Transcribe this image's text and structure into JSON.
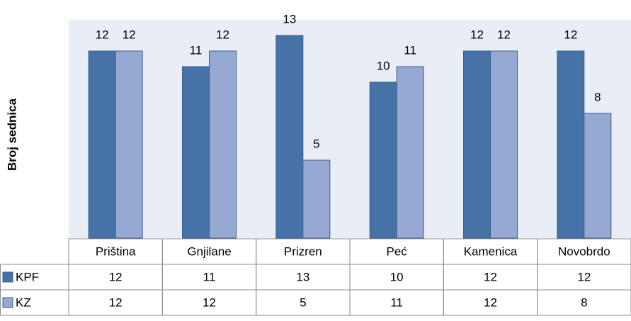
{
  "chart_data": {
    "type": "bar",
    "y_label": "Broj sednica",
    "categories": [
      "Priština",
      "Gnjilane",
      "Prizren",
      "Peć",
      "Kamenica",
      "Novobrdo"
    ],
    "series": [
      {
        "name": "KPF",
        "color": "#4672a8",
        "values": [
          12,
          11,
          13,
          10,
          12,
          12
        ]
      },
      {
        "name": "KZ",
        "color": "#95a9d2",
        "values": [
          12,
          12,
          5,
          11,
          12,
          8
        ]
      }
    ],
    "ylim": [
      0,
      14
    ]
  }
}
